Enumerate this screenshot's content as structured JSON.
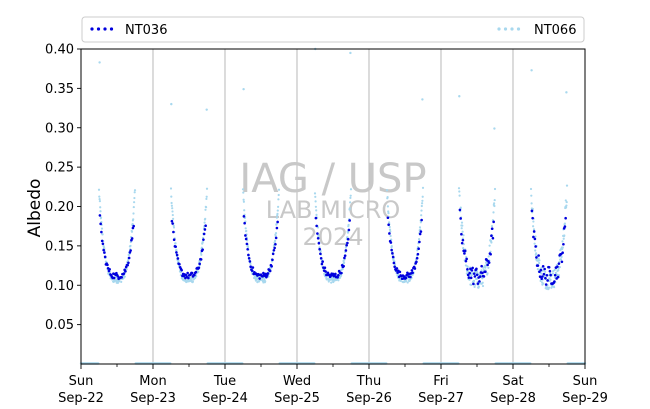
{
  "chart_data": {
    "type": "scatter",
    "title": "",
    "xlabel": "",
    "ylabel": "Albedo",
    "ylim": [
      0.0,
      0.4
    ],
    "xlim": [
      "2024-09-22",
      "2024-09-29"
    ],
    "yticks": [
      "0.05",
      "0.10",
      "0.15",
      "0.20",
      "0.25",
      "0.30",
      "0.35",
      "0.40"
    ],
    "xticks": [
      {
        "day": "Sun",
        "date": "Sep-22"
      },
      {
        "day": "Mon",
        "date": "Sep-23"
      },
      {
        "day": "Tue",
        "date": "Sep-24"
      },
      {
        "day": "Wed",
        "date": "Sep-25"
      },
      {
        "day": "Thu",
        "date": "Sep-26"
      },
      {
        "day": "Fri",
        "date": "Sep-27"
      },
      {
        "day": "Sat",
        "date": "Sep-28"
      },
      {
        "day": "Sun",
        "date": "Sep-29"
      }
    ],
    "grid": "vertical lines at day boundaries",
    "legend_position": "top",
    "watermark": {
      "line1": "IAG / USP",
      "line2": "LAB MICRO",
      "line3": "2024"
    },
    "series": [
      {
        "name": "NT036",
        "color": "#0000dd",
        "marker": "dot",
        "daily_curve": {
          "morning_start_hour": 6.3,
          "evening_end_hour": 17.7,
          "min_value": 0.112,
          "max_value": 0.185
        },
        "night_value": 0.0
      },
      {
        "name": "NT066",
        "color": "#a8d8ee",
        "marker": "dot",
        "daily_curve": {
          "morning_start_hour": 6.0,
          "evening_end_hour": 18.0,
          "min_value": 0.107,
          "max_value": 0.22
        },
        "night_value": 0.0,
        "outliers": [
          {
            "date": "2024-09-22",
            "hour": 6.2,
            "value": 0.383
          },
          {
            "date": "2024-09-23",
            "hour": 6.1,
            "value": 0.33
          },
          {
            "date": "2024-09-23",
            "hour": 17.9,
            "value": 0.323
          },
          {
            "date": "2024-09-24",
            "hour": 6.2,
            "value": 0.349
          },
          {
            "date": "2024-09-25",
            "hour": 6.1,
            "value": 0.4
          },
          {
            "date": "2024-09-25",
            "hour": 17.8,
            "value": 0.395
          },
          {
            "date": "2024-09-26",
            "hour": 17.8,
            "value": 0.336
          },
          {
            "date": "2024-09-27",
            "hour": 6.1,
            "value": 0.34
          },
          {
            "date": "2024-09-27",
            "hour": 17.8,
            "value": 0.299
          },
          {
            "date": "2024-09-28",
            "hour": 6.2,
            "value": 0.373
          },
          {
            "date": "2024-09-28",
            "hour": 17.8,
            "value": 0.345
          }
        ]
      }
    ]
  }
}
